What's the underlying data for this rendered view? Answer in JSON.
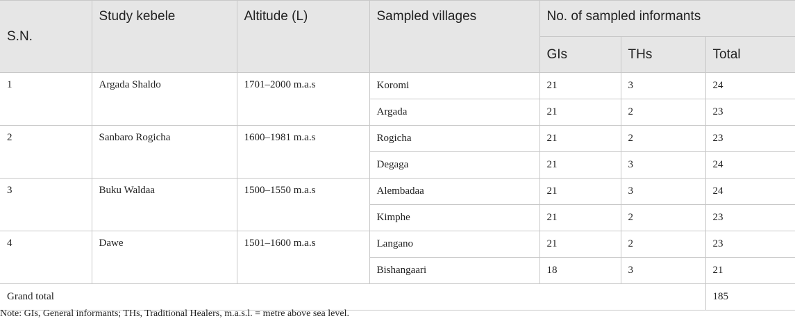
{
  "headers": {
    "sn": "S.N.",
    "kebele": "Study kebele",
    "altitude": "Altitude (L)",
    "villages": "Sampled villages",
    "informants": "No. of sampled informants",
    "gis": "GIs",
    "ths": "THs",
    "total": "Total"
  },
  "groups": [
    {
      "sn": "1",
      "kebele": "Argada Shaldo",
      "altitude": "1701–2000 m.a.s",
      "rows": [
        {
          "village": "Koromi",
          "gis": "21",
          "ths": "3",
          "total": "24"
        },
        {
          "village": "Argada",
          "gis": "21",
          "ths": "2",
          "total": "23"
        }
      ]
    },
    {
      "sn": "2",
      "kebele": "Sanbaro Rogicha",
      "altitude": "1600–1981 m.a.s",
      "rows": [
        {
          "village": "Rogicha",
          "gis": "21",
          "ths": "2",
          "total": "23"
        },
        {
          "village": "Degaga",
          "gis": "21",
          "ths": "3",
          "total": "24"
        }
      ]
    },
    {
      "sn": "3",
      "kebele": "Buku Waldaa",
      "altitude": "1500–1550 m.a.s",
      "rows": [
        {
          "village": "Alembadaa",
          "gis": "21",
          "ths": "3",
          "total": "24"
        },
        {
          "village": "Kimphe",
          "gis": "21",
          "ths": "2",
          "total": "23"
        }
      ]
    },
    {
      "sn": "4",
      "kebele": "Dawe",
      "altitude": "1501–1600 m.a.s",
      "rows": [
        {
          "village": "Langano",
          "gis": "21",
          "ths": "2",
          "total": "23"
        },
        {
          "village": "Bishangaari",
          "gis": "18",
          "ths": "3",
          "total": "21"
        }
      ]
    }
  ],
  "grand_total": {
    "label": "Grand total",
    "value": "185"
  },
  "note": "Note: GIs, General informants; THs, Traditional Healers, m.a.s.l. = metre above sea level."
}
